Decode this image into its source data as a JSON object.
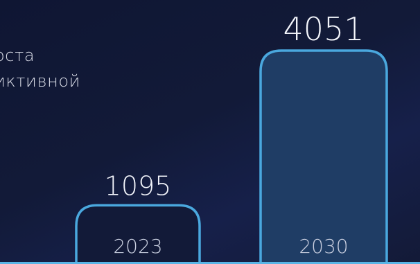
{
  "text": {
    "desc_line1": "оста",
    "desc_line2": "иктивной"
  },
  "chart_data": {
    "type": "bar",
    "categories": [
      "2023",
      "2030"
    ],
    "values": [
      1095,
      4051
    ],
    "title": "",
    "xlabel": "",
    "ylabel": "",
    "grid": false,
    "colors": {
      "outline": "#4aa8de",
      "fill_bar1": "#121a38",
      "fill_bar2": "#1f3d65",
      "baseline": "#5ab5e6",
      "background": "#121a38"
    }
  }
}
